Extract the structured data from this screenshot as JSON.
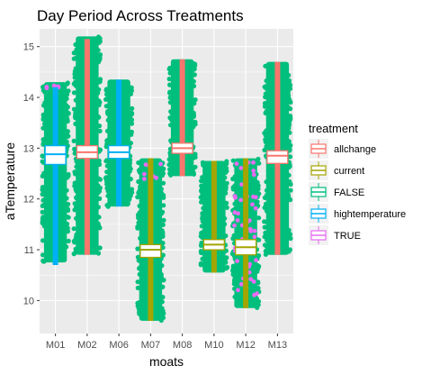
{
  "chart_data": {
    "type": "boxplot-jitter",
    "title": "Day Period Across Treatments",
    "xlabel": "moats",
    "ylabel": "aTemperature",
    "categories": [
      "M01",
      "M02",
      "M06",
      "M07",
      "M08",
      "M10",
      "M12",
      "M13"
    ],
    "ylim": [
      9.35,
      15.35
    ],
    "yticks": [
      10,
      11,
      12,
      13,
      14,
      15
    ],
    "grid": true,
    "legend": {
      "title": "treatment",
      "position": "right",
      "entries": [
        {
          "label": "allchange",
          "color": "#F8766D"
        },
        {
          "label": "current",
          "color": "#A3A500"
        },
        {
          "label": "FALSE",
          "color": "#00BF7D"
        },
        {
          "label": "hightemperature",
          "color": "#00B0F6"
        },
        {
          "label": "TRUE",
          "color": "#E76BF3"
        }
      ]
    },
    "boxes": [
      {
        "moat": "M01",
        "treatment": "hightemperature",
        "min": 10.7,
        "q1": 12.68,
        "median": 12.88,
        "q3": 13.05,
        "max": 14.2,
        "lower_whisker": 12.45,
        "upper_whisker": 13.3
      },
      {
        "moat": "M02",
        "treatment": "allchange",
        "min": 10.9,
        "q1": 12.8,
        "median": 12.92,
        "q3": 13.05,
        "max": 15.15,
        "lower_whisker": 12.55,
        "upper_whisker": 13.3
      },
      {
        "moat": "M06",
        "treatment": "hightemperature",
        "min": 11.85,
        "q1": 12.8,
        "median": 12.92,
        "q3": 13.05,
        "max": 14.35,
        "lower_whisker": 12.55,
        "upper_whisker": 13.3
      },
      {
        "moat": "M07",
        "treatment": "current",
        "min": 9.6,
        "q1": 10.85,
        "median": 11.0,
        "q3": 11.1,
        "max": 12.8,
        "lower_whisker": 10.6,
        "upper_whisker": 11.35
      },
      {
        "moat": "M08",
        "treatment": "allchange",
        "min": 12.45,
        "q1": 12.9,
        "median": 13.0,
        "q3": 13.1,
        "max": 14.75,
        "lower_whisker": 12.7,
        "upper_whisker": 13.3
      },
      {
        "moat": "M10",
        "treatment": "current",
        "min": 10.55,
        "q1": 11.0,
        "median": 11.1,
        "q3": 11.2,
        "max": 12.75,
        "lower_whisker": 10.8,
        "upper_whisker": 11.4
      },
      {
        "moat": "M12",
        "treatment": "current",
        "min": 9.85,
        "q1": 10.9,
        "median": 11.05,
        "q3": 11.2,
        "max": 12.8,
        "lower_whisker": 10.7,
        "upper_whisker": 11.45
      },
      {
        "moat": "M13",
        "treatment": "allchange",
        "min": 10.9,
        "q1": 12.7,
        "median": 12.85,
        "q3": 12.95,
        "max": 14.7,
        "lower_whisker": 12.45,
        "upper_whisker": 13.2
      }
    ],
    "point_ranges": [
      {
        "moat": "M01",
        "treatment": "FALSE",
        "min": 10.75,
        "max": 14.3
      },
      {
        "moat": "M01",
        "treatment": "TRUE",
        "min": 14.15,
        "max": 14.25
      },
      {
        "moat": "M02",
        "treatment": "FALSE",
        "min": 10.9,
        "max": 15.2
      },
      {
        "moat": "M06",
        "treatment": "FALSE",
        "min": 11.85,
        "max": 14.35
      },
      {
        "moat": "M07",
        "treatment": "FALSE",
        "min": 9.6,
        "max": 12.8
      },
      {
        "moat": "M07",
        "treatment": "TRUE",
        "min": 12.3,
        "max": 12.7
      },
      {
        "moat": "M08",
        "treatment": "FALSE",
        "min": 12.45,
        "max": 14.75
      },
      {
        "moat": "M10",
        "treatment": "FALSE",
        "min": 10.55,
        "max": 12.75
      },
      {
        "moat": "M12",
        "treatment": "FALSE",
        "min": 9.85,
        "max": 12.8
      },
      {
        "moat": "M12",
        "treatment": "TRUE",
        "min": 10.0,
        "max": 12.8
      },
      {
        "moat": "M13",
        "treatment": "FALSE",
        "min": 10.9,
        "max": 14.7
      }
    ]
  }
}
